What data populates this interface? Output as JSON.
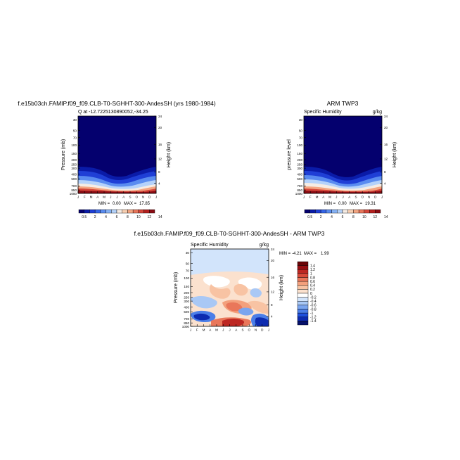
{
  "chart_data": [
    {
      "type": "heatmap",
      "title": "f.e15b03ch.FAMIP.f09_f09.CLB-T0-SGHHT-300-AndesSH (yrs 1980-1984)",
      "subtitle": "Q at -12.7225130890052,-34.25",
      "xlabel": "",
      "ylabel": "Pressure (mb)",
      "ylabel_right": "Height (km)",
      "x": [
        "J",
        "F",
        "M",
        "A",
        "M",
        "J",
        "J",
        "A",
        "S",
        "O",
        "N",
        "D",
        "J"
      ],
      "y_pressure_ticks": [
        "30",
        "50",
        "70",
        "100",
        "150",
        "200",
        "250",
        "300",
        "400",
        "500",
        "700",
        "850",
        "1000"
      ],
      "height_ticks": [
        "4",
        "8",
        "12",
        "16",
        "20",
        "24"
      ],
      "min_label": "MIN =",
      "min_value": "0.00",
      "max_label": "MAX =",
      "max_value": "17.85",
      "colorbar_labels": [
        "0.5",
        "2",
        "4",
        "6",
        "8",
        "10",
        "12",
        "14"
      ],
      "ylim": [
        1000,
        25
      ]
    },
    {
      "type": "heatmap",
      "title": "ARM TWP3",
      "subtitle": "Specific Humidity",
      "units": "g/kg",
      "xlabel": "",
      "ylabel": "pressure level",
      "ylabel_right": "Height (km)",
      "x": [
        "J",
        "F",
        "M",
        "A",
        "M",
        "J",
        "J",
        "A",
        "S",
        "O",
        "N",
        "D",
        "J"
      ],
      "y_pressure_ticks": [
        "30",
        "50",
        "70",
        "100",
        "150",
        "200",
        "250",
        "300",
        "400",
        "500",
        "700",
        "850",
        "1000"
      ],
      "height_ticks": [
        "4",
        "8",
        "12",
        "16",
        "20",
        "24"
      ],
      "min_label": "MIN =",
      "min_value": "0.00",
      "max_label": "MAX =",
      "max_value": "19.31",
      "colorbar_labels": [
        "0.5",
        "2",
        "4",
        "6",
        "8",
        "10",
        "12",
        "14"
      ],
      "ylim": [
        1000,
        25
      ]
    },
    {
      "type": "heatmap",
      "title": "f.e15b03ch.FAMIP.f09_f09.CLB-T0-SGHHT-300-AndesSH - ARM TWP3",
      "subtitle": "Specific Humidity",
      "units": "g/kg",
      "xlabel": "",
      "ylabel": "Pressure (mb)",
      "ylabel_right": "Height (km)",
      "x": [
        "J",
        "F",
        "M",
        "A",
        "M",
        "J",
        "J",
        "A",
        "S",
        "O",
        "N",
        "D",
        "J"
      ],
      "y_pressure_ticks": [
        "30",
        "50",
        "70",
        "100",
        "150",
        "200",
        "250",
        "300",
        "400",
        "500",
        "700",
        "850",
        "1000"
      ],
      "height_ticks": [
        "4",
        "8",
        "12",
        "16",
        "20",
        "24"
      ],
      "min_label": "MIN =",
      "min_value": "-4.21",
      "max_label": "MAX =",
      "max_value": "1.99",
      "colorbar_labels": [
        "1.4",
        "1.2",
        "1",
        "0.8",
        "0.6",
        "0.4",
        "0.2",
        "0",
        "-0.2",
        "-0.4",
        "-0.6",
        "-0.8",
        "-1",
        "-1.2",
        "-1.4"
      ],
      "ylim": [
        1000,
        25
      ]
    }
  ],
  "colors": {
    "abs_scale": [
      "#04006e",
      "#0a1ba8",
      "#1f3fd6",
      "#3565e8",
      "#5a8cf0",
      "#86b2f5",
      "#b4d2fa",
      "#f6ece3",
      "#f8cfb2",
      "#f4a682",
      "#e8765b",
      "#d4463a",
      "#b4201f",
      "#8a0c13"
    ],
    "diff_scale": [
      "#06116b",
      "#0d2bb0",
      "#1f4fdc",
      "#4b7ee8",
      "#7aa5ef",
      "#a9c8f5",
      "#d2e4fb",
      "#ffffff",
      "#fbe1ce",
      "#f8c3a3",
      "#f3a07c",
      "#e9775a",
      "#d84a3a",
      "#bd2722",
      "#960f13",
      "#6a0608"
    ]
  }
}
